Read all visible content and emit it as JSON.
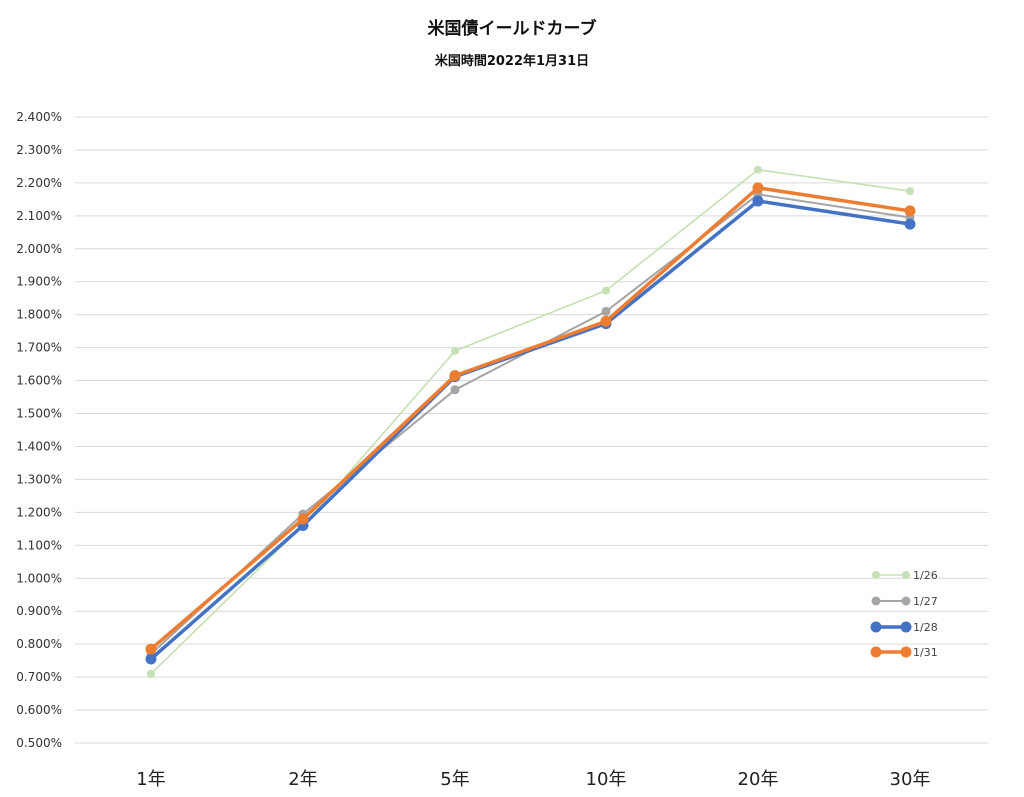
{
  "chart_data": {
    "type": "line",
    "title": "米国債イールドカーブ",
    "subtitle": "米国時間2022年1月31日",
    "categories": [
      "1年",
      "2年",
      "5年",
      "10年",
      "20年",
      "30年"
    ],
    "y_ticks": [
      "2.400%",
      "2.300%",
      "2.200%",
      "2.100%",
      "2.000%",
      "1.900%",
      "1.800%",
      "1.700%",
      "1.600%",
      "1.500%",
      "1.400%",
      "1.300%",
      "1.200%",
      "1.100%",
      "1.000%",
      "0.900%",
      "0.800%",
      "0.700%",
      "0.600%",
      "0.500%"
    ],
    "ylim": [
      0.5,
      2.4
    ],
    "y_unit": "%",
    "grid": true,
    "legend_position": "bottom-right",
    "series": [
      {
        "name": "1/26",
        "color": "#c5e0b4",
        "values": [
          0.71,
          1.16,
          1.69,
          1.873,
          2.24,
          2.175
        ]
      },
      {
        "name": "1/27",
        "color": "#a5a5a5",
        "values": [
          0.77,
          1.195,
          1.572,
          1.81,
          2.165,
          2.095
        ]
      },
      {
        "name": "1/28",
        "color": "#4472c4",
        "values": [
          0.755,
          1.16,
          1.612,
          1.773,
          2.145,
          2.075
        ]
      },
      {
        "name": "1/31",
        "color": "#ed7d31",
        "values": [
          0.785,
          1.18,
          1.615,
          1.78,
          2.185,
          2.115
        ]
      }
    ]
  }
}
